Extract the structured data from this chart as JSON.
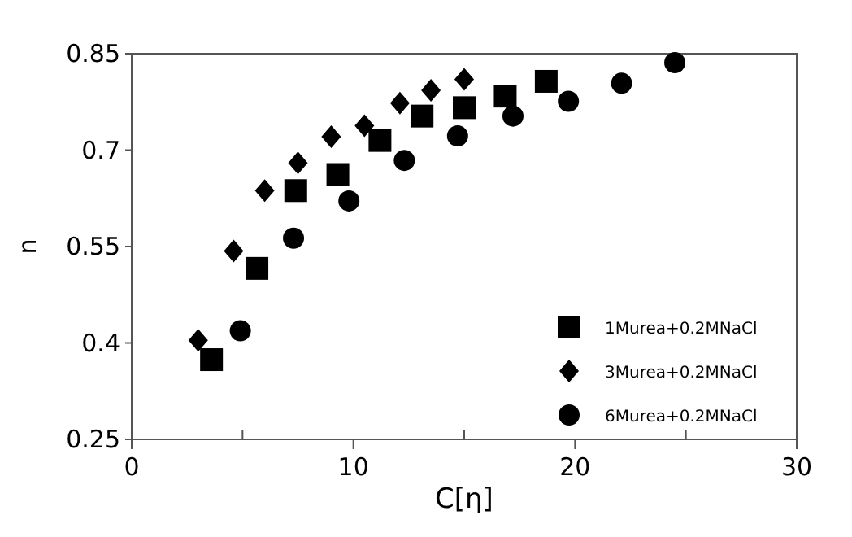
{
  "chart_data": {
    "type": "scatter",
    "xlabel": "C[η]",
    "ylabel": "n",
    "xlim": [
      0,
      30
    ],
    "ylim": [
      0.25,
      0.85
    ],
    "xticks": [
      0,
      {
        "value": 5,
        "label": null
      },
      10,
      {
        "value": 15,
        "label": null
      },
      20,
      {
        "value": 25,
        "label": null
      },
      30
    ],
    "yticks": [
      0.25,
      0.4,
      0.55,
      0.7,
      0.85
    ],
    "grid": false,
    "legend": "bottom right",
    "series": [
      {
        "name": "1Murea+0.2MNaCl",
        "color": "#000000",
        "marker": "square",
        "x": [
          3.6,
          5.65,
          7.4,
          9.3,
          11.2,
          13.1,
          15.0,
          16.85,
          18.7
        ],
        "values": [
          0.374,
          0.516,
          0.637,
          0.662,
          0.715,
          0.753,
          0.766,
          0.784,
          0.807
        ]
      },
      {
        "name": "3Murea+0.2MNaCl",
        "color": "#000000",
        "marker": "diamond",
        "x": [
          3.0,
          4.6,
          6.0,
          7.5,
          9.0,
          10.5,
          12.1,
          13.5,
          15.0
        ],
        "values": [
          0.404,
          0.543,
          0.637,
          0.68,
          0.721,
          0.738,
          0.773,
          0.793,
          0.81
        ]
      },
      {
        "name": "6Murea+0.2MNaCl",
        "color": "#000000",
        "marker": "circle",
        "x": [
          4.9,
          7.3,
          9.8,
          12.3,
          14.7,
          17.2,
          19.7,
          22.1,
          24.5
        ],
        "values": [
          0.419,
          0.563,
          0.621,
          0.684,
          0.722,
          0.753,
          0.776,
          0.804,
          0.836
        ]
      }
    ]
  }
}
